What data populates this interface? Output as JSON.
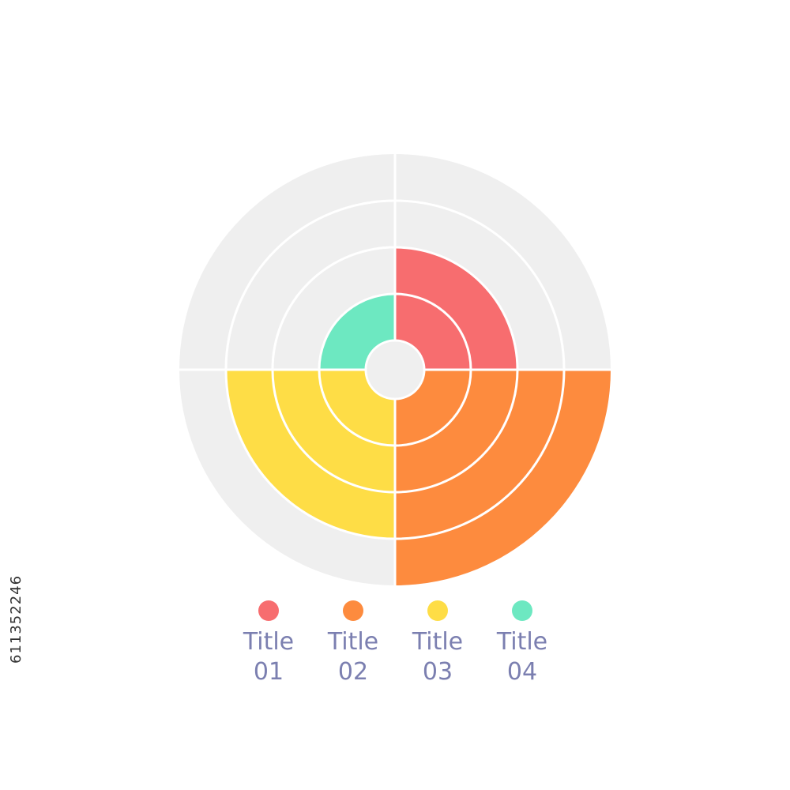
{
  "chart_data": {
    "type": "radial-bar",
    "rings": 4,
    "series": [
      {
        "name": "Title 01",
        "quadrant": "top-right",
        "value": 2,
        "color": "#f76d6f"
      },
      {
        "name": "Title 02",
        "quadrant": "bottom-right",
        "value": 4,
        "color": "#fd8b3e"
      },
      {
        "name": "Title 03",
        "quadrant": "bottom-left",
        "value": 3,
        "color": "#fedd46"
      },
      {
        "name": "Title 04",
        "quadrant": "top-left",
        "value": 1,
        "color": "#6de8c1"
      }
    ],
    "background_color": "#efefef",
    "legend_position": "bottom"
  },
  "legend": [
    {
      "label": "Title\n01",
      "color": "#f76d6f"
    },
    {
      "label": "Title\n02",
      "color": "#fd8b3e"
    },
    {
      "label": "Title\n03",
      "color": "#fedd46"
    },
    {
      "label": "Title\n04",
      "color": "#6de8c1"
    }
  ],
  "watermark": {
    "stock_id": "611352246"
  }
}
